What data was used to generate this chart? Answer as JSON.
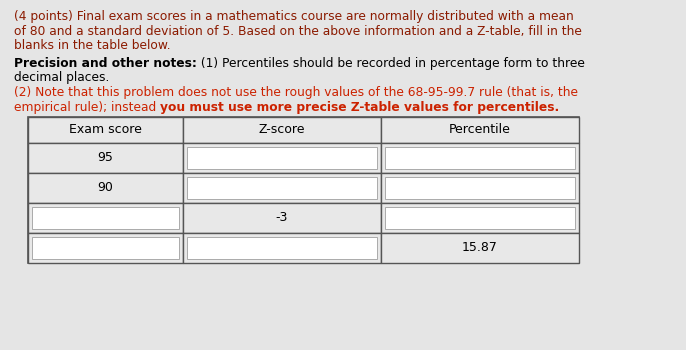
{
  "background_color": "#e5e5e5",
  "text_color_dark_red": "#8b0000",
  "text_color_red": "#cc2200",
  "text_color_black": "#000000",
  "intro_line1": "(4 points) Final exam scores in a mathematics course are normally distributed with a mean",
  "intro_line2": "of 80 and a standard deviation of 5. Based on the above information and a Z-table, fill in the",
  "intro_line3": "blanks in the table below.",
  "prec_bold": "Precision and other notes:",
  "prec_normal": " (1) Percentiles should be recorded in percentage form to three",
  "prec_line2": "decimal places.",
  "note2_line1": "(2) Note that this problem does not use the rough values of the 68-95-99.7 rule (that is, the",
  "note2_normal": "empirical rule); instead ",
  "note2_bold": "you must use more precise Z-table values for percentiles.",
  "table_headers": [
    "Exam score",
    "Z-score",
    "Percentile"
  ],
  "rows": [
    [
      "95",
      "",
      ""
    ],
    [
      "90",
      "",
      ""
    ],
    [
      "",
      "-3",
      ""
    ],
    [
      "",
      "",
      "15.87"
    ]
  ],
  "font_size_intro": 8.8,
  "font_size_table": 9.0,
  "table_outer_color": "#555555",
  "table_inner_color": "#aaaaaa",
  "table_header_bg": "#e8e8e8",
  "table_cell_filled_bg": "#e8e8e8",
  "table_cell_blank_bg": "#f5f5f5",
  "table_cell_white_bg": "#ffffff"
}
